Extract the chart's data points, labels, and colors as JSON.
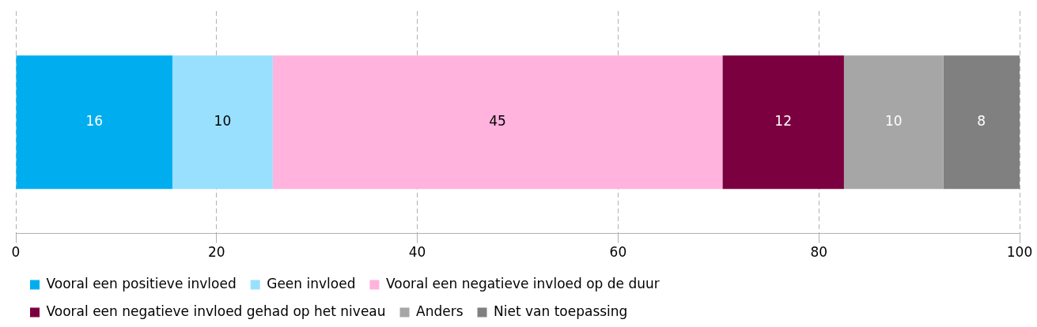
{
  "chart_data": {
    "type": "bar",
    "orientation": "horizontal",
    "stacked": true,
    "categories": [
      null
    ],
    "series": [
      {
        "name": "Vooral een positieve invloed",
        "color": "#00aeef",
        "values": [
          15.6
        ],
        "value_labels": [
          "16"
        ]
      },
      {
        "name": "Geen invloed",
        "color": "#99e0ff",
        "values": [
          10.0
        ],
        "value_labels": [
          "10"
        ]
      },
      {
        "name": "Vooral een negatieve invloed op de duur",
        "color": "#ffb3dd",
        "values": [
          44.8
        ],
        "value_labels": [
          "45"
        ]
      },
      {
        "name": "Vooral een negatieve invloed gehad op het niveau",
        "color": "#7b003f",
        "values": [
          12.1
        ],
        "value_labels": [
          "12"
        ]
      },
      {
        "name": "Anders",
        "color": "#a6a6a6",
        "values": [
          9.9
        ],
        "value_labels": [
          "10"
        ]
      },
      {
        "name": "Niet van toepassing",
        "color": "#808080",
        "values": [
          7.6
        ],
        "value_labels": [
          "8"
        ]
      }
    ],
    "xlim": [
      0,
      100
    ],
    "xticks": [
      0,
      20,
      40,
      60,
      80,
      100
    ],
    "grid": "x",
    "legend": "bottom"
  }
}
